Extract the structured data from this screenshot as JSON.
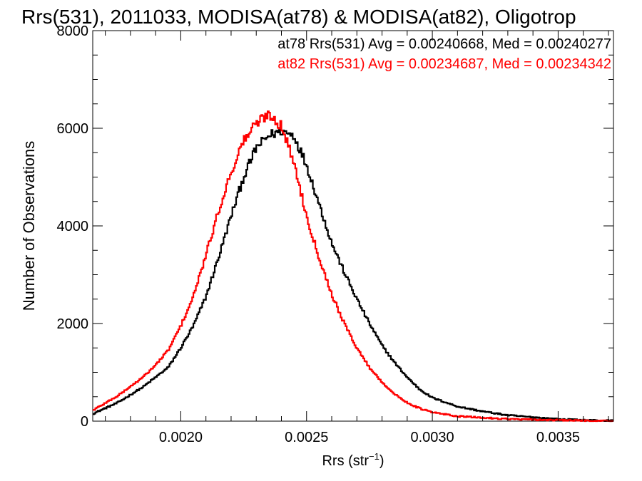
{
  "chart_data": {
    "type": "line",
    "step": true,
    "title": "Rrs(531), 2011033, MODISA(at78) & MODISA(at82), Oligotrop",
    "xlabel": "Rrs (str",
    "xlabel_sup": "−1",
    "xlabel_tail": ")",
    "ylabel": "Number of Observations",
    "xlim": [
      0.00165,
      0.00372
    ],
    "ylim": [
      0,
      8000
    ],
    "grid": false,
    "x_ticks": [
      {
        "value": 0.002,
        "label": "0.0020"
      },
      {
        "value": 0.0025,
        "label": "0.0025"
      },
      {
        "value": 0.003,
        "label": "0.0030"
      },
      {
        "value": 0.0035,
        "label": "0.0035"
      }
    ],
    "y_ticks": [
      {
        "value": 0,
        "label": "0"
      },
      {
        "value": 2000,
        "label": "2000"
      },
      {
        "value": 4000,
        "label": "4000"
      },
      {
        "value": 6000,
        "label": "6000"
      },
      {
        "value": 8000,
        "label": "8000"
      }
    ],
    "legend": [
      {
        "text": "at78 Rrs(531) Avg = 0.00240668, Med = 0.00240277",
        "color": "#000000"
      },
      {
        "text": "at82 Rrs(531) Avg = 0.00234687, Med = 0.00234342",
        "color": "#ff0000"
      }
    ],
    "legend_position": "top-right",
    "series": [
      {
        "color": "#000000",
        "x": [
          0.00165,
          0.00175,
          0.00185,
          0.0019,
          0.00195,
          0.002,
          0.00205,
          0.0021,
          0.00215,
          0.0022,
          0.00225,
          0.0023,
          0.00235,
          0.0024,
          0.00245,
          0.0025,
          0.00255,
          0.0026,
          0.00265,
          0.0027,
          0.00275,
          0.0028,
          0.00285,
          0.0029,
          0.00295,
          0.003,
          0.0031,
          0.0032,
          0.0033,
          0.0034,
          0.0035,
          0.0036,
          0.0037
        ],
        "y": [
          150,
          380,
          700,
          900,
          1100,
          1500,
          1950,
          2550,
          3350,
          4200,
          5000,
          5600,
          5850,
          5950,
          5850,
          5250,
          4450,
          3650,
          3050,
          2500,
          2000,
          1550,
          1200,
          900,
          650,
          480,
          300,
          200,
          120,
          80,
          40,
          20,
          10
        ]
      },
      {
        "color": "#ff0000",
        "x": [
          0.00165,
          0.00175,
          0.00185,
          0.0019,
          0.00195,
          0.002,
          0.00205,
          0.0021,
          0.00215,
          0.0022,
          0.00225,
          0.0023,
          0.00235,
          0.0024,
          0.00245,
          0.0025,
          0.00255,
          0.0026,
          0.00265,
          0.0027,
          0.00275,
          0.0028,
          0.00285,
          0.0029,
          0.00295,
          0.003,
          0.0031,
          0.0032,
          0.0033,
          0.0034,
          0.0035,
          0.0036,
          0.0037
        ],
        "y": [
          220,
          520,
          900,
          1150,
          1450,
          1950,
          2550,
          3400,
          4300,
          5100,
          5750,
          6100,
          6300,
          6050,
          5300,
          4200,
          3350,
          2600,
          2000,
          1500,
          1100,
          800,
          550,
          380,
          260,
          180,
          100,
          70,
          45,
          30,
          20,
          10,
          5
        ]
      }
    ]
  }
}
